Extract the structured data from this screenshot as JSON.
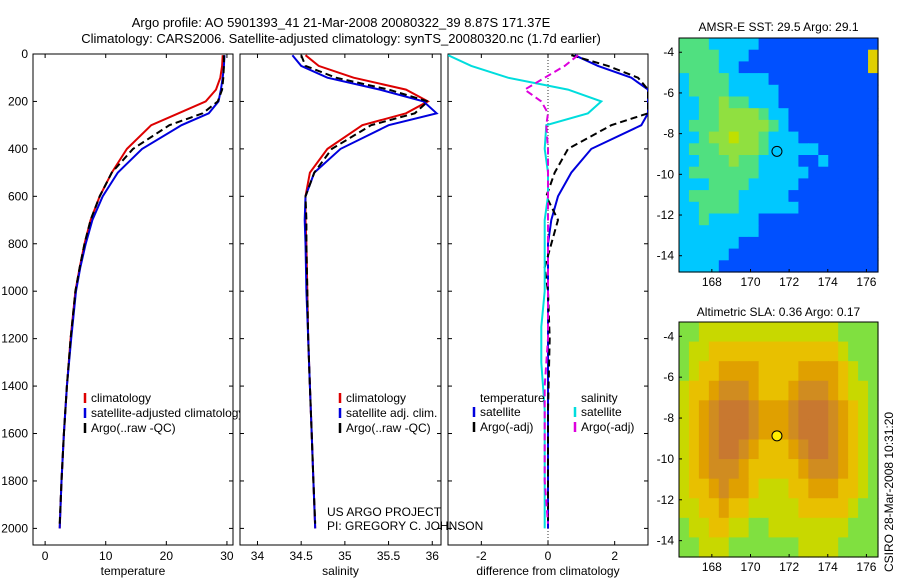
{
  "title": {
    "line1": "Argo profile: AO 5901393_41 21-Mar-2008 20080322_39 8.87S 171.37E",
    "line2": "Climatology: CARS2006. Satellite-adjusted climatology: synTS_20080320.nc (1.7d earlier)"
  },
  "side_credit": "CSIRO 28-Mar-2008 10:31:20",
  "project_note": {
    "line1": "US ARGO PROJECT",
    "line2": "PI: GREGORY C. JOHNSON"
  },
  "chart_data": [
    {
      "id": "temperature",
      "type": "line",
      "xlabel": "temperature",
      "ylabel": "",
      "xlim": [
        -2,
        31
      ],
      "ylim": [
        0,
        2070
      ],
      "y_reversed": true,
      "xticks": [
        0,
        10,
        20,
        30
      ],
      "yticks": [
        0,
        200,
        400,
        600,
        800,
        1000,
        1200,
        1400,
        1600,
        1800,
        2000
      ],
      "legend": {
        "placement": "lower-right",
        "entries": [
          "climatology",
          "satellite-adjusted climatology",
          "Argo(..raw -QC)"
        ]
      },
      "series": [
        {
          "name": "climatology",
          "color": "#dd0000",
          "dash": "solid",
          "points": [
            [
              29.3,
              5
            ],
            [
              29.2,
              50
            ],
            [
              28.9,
              100
            ],
            [
              28.2,
              150
            ],
            [
              26.5,
              200
            ],
            [
              22,
              250
            ],
            [
              17.5,
              300
            ],
            [
              13.5,
              400
            ],
            [
              11,
              500
            ],
            [
              9,
              600
            ],
            [
              7.5,
              700
            ],
            [
              6.5,
              800
            ],
            [
              5.7,
              900
            ],
            [
              5,
              1000
            ],
            [
              4.2,
              1200
            ],
            [
              3.6,
              1400
            ],
            [
              3.1,
              1600
            ],
            [
              2.7,
              1800
            ],
            [
              2.4,
              2000
            ]
          ]
        },
        {
          "name": "satellite-adjusted climatology",
          "color": "#0000dd",
          "dash": "solid",
          "points": [
            [
              29.6,
              5
            ],
            [
              29.5,
              50
            ],
            [
              29.3,
              100
            ],
            [
              29,
              150
            ],
            [
              28.6,
              200
            ],
            [
              27,
              250
            ],
            [
              22.5,
              300
            ],
            [
              16,
              400
            ],
            [
              12,
              500
            ],
            [
              9.5,
              600
            ],
            [
              7.8,
              700
            ],
            [
              6.7,
              800
            ],
            [
              5.8,
              900
            ],
            [
              5.1,
              1000
            ],
            [
              4.3,
              1200
            ],
            [
              3.6,
              1400
            ],
            [
              3.1,
              1600
            ],
            [
              2.7,
              1800
            ],
            [
              2.4,
              2000
            ]
          ]
        },
        {
          "name": "Argo(..raw -QC)",
          "color": "#000000",
          "dash": "dashed",
          "points": [
            [
              29.5,
              5
            ],
            [
              29.5,
              50
            ],
            [
              29.4,
              100
            ],
            [
              29.2,
              150
            ],
            [
              28.5,
              200
            ],
            [
              26,
              250
            ],
            [
              20.5,
              300
            ],
            [
              14.5,
              400
            ],
            [
              11,
              500
            ],
            [
              9,
              600
            ],
            [
              7.5,
              700
            ],
            [
              6.5,
              800
            ],
            [
              5.7,
              900
            ],
            [
              5,
              1000
            ],
            [
              4.2,
              1200
            ],
            [
              3.6,
              1400
            ],
            [
              3.1,
              1600
            ],
            [
              2.7,
              1800
            ],
            [
              2.4,
              1980
            ]
          ]
        }
      ]
    },
    {
      "id": "salinity",
      "type": "line",
      "xlabel": "salinity",
      "ylabel": "",
      "xlim": [
        33.8,
        36.1
      ],
      "ylim": [
        0,
        2070
      ],
      "y_reversed": true,
      "xticks": [
        34,
        34.5,
        35,
        35.5,
        36
      ],
      "legend": {
        "placement": "lower-right",
        "entries": [
          "climatology",
          "satellite adj. clim.",
          "Argo(..raw -QC)"
        ]
      },
      "series": [
        {
          "name": "climatology",
          "color": "#dd0000",
          "dash": "solid",
          "points": [
            [
              34.55,
              5
            ],
            [
              34.7,
              50
            ],
            [
              35.1,
              100
            ],
            [
              35.7,
              150
            ],
            [
              35.95,
              200
            ],
            [
              35.7,
              250
            ],
            [
              35.2,
              300
            ],
            [
              34.8,
              400
            ],
            [
              34.6,
              500
            ],
            [
              34.55,
              600
            ],
            [
              34.55,
              700
            ],
            [
              34.56,
              800
            ],
            [
              34.57,
              1000
            ],
            [
              34.58,
              1200
            ],
            [
              34.6,
              1400
            ],
            [
              34.62,
              1600
            ],
            [
              34.64,
              1800
            ],
            [
              34.66,
              2000
            ]
          ]
        },
        {
          "name": "satellite adj. clim.",
          "color": "#0000dd",
          "dash": "solid",
          "points": [
            [
              34.4,
              5
            ],
            [
              34.5,
              50
            ],
            [
              34.8,
              100
            ],
            [
              35.4,
              150
            ],
            [
              35.9,
              200
            ],
            [
              36.05,
              250
            ],
            [
              35.5,
              300
            ],
            [
              34.95,
              400
            ],
            [
              34.65,
              500
            ],
            [
              34.55,
              600
            ],
            [
              34.54,
              700
            ],
            [
              34.55,
              800
            ],
            [
              34.56,
              1000
            ],
            [
              34.58,
              1200
            ],
            [
              34.6,
              1400
            ],
            [
              34.62,
              1600
            ],
            [
              34.64,
              1800
            ],
            [
              34.66,
              2000
            ]
          ]
        },
        {
          "name": "Argo(..raw -QC)",
          "color": "#000000",
          "dash": "dashed",
          "points": [
            [
              34.5,
              5
            ],
            [
              34.55,
              50
            ],
            [
              34.9,
              100
            ],
            [
              35.5,
              150
            ],
            [
              35.95,
              200
            ],
            [
              35.8,
              250
            ],
            [
              35.3,
              300
            ],
            [
              34.85,
              400
            ],
            [
              34.65,
              500
            ],
            [
              34.55,
              600
            ],
            [
              34.56,
              700
            ],
            [
              34.56,
              800
            ],
            [
              34.57,
              1000
            ],
            [
              34.58,
              1200
            ],
            [
              34.6,
              1400
            ],
            [
              34.62,
              1600
            ],
            [
              34.64,
              1800
            ],
            [
              34.66,
              1980
            ]
          ]
        }
      ]
    },
    {
      "id": "difference",
      "type": "line",
      "xlabel": "difference from climatology",
      "ylabel": "",
      "xlim": [
        -3,
        3
      ],
      "ylim": [
        0,
        2070
      ],
      "y_reversed": true,
      "xticks": [
        -2,
        0,
        2
      ],
      "zero_line": true,
      "legend": {
        "placement": "lower-center",
        "columns": [
          {
            "header": "temperature",
            "entries": [
              "satellite",
              "Argo(-adj)"
            ]
          },
          {
            "header": "salinity",
            "entries": [
              "satellite",
              "Argo(-adj)"
            ]
          }
        ]
      },
      "series": [
        {
          "name": "temperature satellite",
          "color": "#0000dd",
          "dash": "solid",
          "points": [
            [
              0.8,
              5
            ],
            [
              1.5,
              50
            ],
            [
              2.5,
              100
            ],
            [
              3,
              150
            ],
            [
              3,
              200
            ],
            [
              3,
              250
            ],
            [
              2.8,
              300
            ],
            [
              1.3,
              400
            ],
            [
              0.7,
              500
            ],
            [
              0.3,
              600
            ],
            [
              0.1,
              700
            ],
            [
              0,
              800
            ],
            [
              0,
              1000
            ],
            [
              0,
              1200
            ],
            [
              0,
              1500
            ],
            [
              0,
              1800
            ],
            [
              0,
              2000
            ]
          ]
        },
        {
          "name": "temperature Argo(-adj)",
          "color": "#000000",
          "dash": "dashed",
          "points": [
            [
              0.7,
              5
            ],
            [
              1.8,
              50
            ],
            [
              2.7,
              100
            ],
            [
              3,
              150
            ],
            [
              3,
              200
            ],
            [
              3,
              250
            ],
            [
              1.9,
              300
            ],
            [
              0.6,
              400
            ],
            [
              0.2,
              500
            ],
            [
              -0.05,
              600
            ],
            [
              0.3,
              700
            ],
            [
              0.1,
              800
            ],
            [
              -0.1,
              900
            ],
            [
              0,
              1000
            ],
            [
              0.05,
              1200
            ],
            [
              0,
              1500
            ],
            [
              0,
              1800
            ],
            [
              0,
              1980
            ]
          ]
        },
        {
          "name": "salinity satellite",
          "color": "#00dddd",
          "dash": "solid",
          "points": [
            [
              -3,
              5
            ],
            [
              -2.3,
              50
            ],
            [
              -1.2,
              100
            ],
            [
              0.6,
              150
            ],
            [
              1.6,
              200
            ],
            [
              1.2,
              250
            ],
            [
              -0.05,
              300
            ],
            [
              -0.1,
              400
            ],
            [
              0,
              500
            ],
            [
              0,
              600
            ],
            [
              -0.1,
              700
            ],
            [
              -0.1,
              800
            ],
            [
              -0.1,
              1000
            ],
            [
              -0.2,
              1150
            ],
            [
              -0.2,
              1300
            ],
            [
              -0.1,
              1500
            ],
            [
              -0.1,
              1800
            ],
            [
              -0.1,
              2000
            ]
          ]
        },
        {
          "name": "salinity Argo(-adj)",
          "color": "#dd00dd",
          "dash": "dashed",
          "points": [
            [
              0.9,
              5
            ],
            [
              0.5,
              50
            ],
            [
              -0.1,
              100
            ],
            [
              -0.7,
              150
            ],
            [
              -0.2,
              200
            ],
            [
              0,
              250
            ],
            [
              -0.05,
              300
            ],
            [
              0,
              400
            ],
            [
              0,
              600
            ],
            [
              0,
              800
            ],
            [
              0,
              1000
            ],
            [
              0,
              1200
            ],
            [
              -0.1,
              1400
            ],
            [
              -0.1,
              1600
            ],
            [
              -0.1,
              1800
            ],
            [
              0,
              1980
            ]
          ]
        }
      ]
    },
    {
      "id": "sst-map",
      "type": "heatmap",
      "title": "AMSR-E SST: 29.5 Argo: 29.1",
      "xlim": [
        166.3,
        176.6
      ],
      "ylim": [
        -14.8,
        -3.3
      ],
      "xticks": [
        168,
        170,
        172,
        174,
        176
      ],
      "yticks": [
        -4,
        -6,
        -8,
        -10,
        -12,
        -14
      ],
      "colormap": [
        "#0050ff",
        "#00c8ff",
        "#50e080",
        "#90e040",
        "#c0e000",
        "#e0d000"
      ],
      "marker": {
        "x": 171.37,
        "y": -8.87,
        "fill": "none"
      },
      "grid_rows": [
        "22211111000000000000",
        "22221110000000000005",
        "22221100000000000005",
        "12222111100000000000",
        "12222111110000000000",
        "11223221110000000000",
        "11223333211000000000",
        "12223333321000000000",
        "11233433211100000000",
        "12223333211111000000",
        "11222322111100100000",
        "12222222111110000000",
        "11122221111100000000",
        "12222211111000000000",
        "11222211111100000000",
        "11211111000000000000",
        "11111111000000000000",
        "11111100000000000000",
        "11111000000000000000",
        "11110000000000000000"
      ]
    },
    {
      "id": "sla-map",
      "type": "heatmap",
      "title": "Altimetric SLA: 0.36 Argo: 0.17",
      "xlim": [
        166.3,
        176.6
      ],
      "ylim": [
        -14.8,
        -3.3
      ],
      "xticks": [
        168,
        170,
        172,
        174,
        176
      ],
      "yticks": [
        -4,
        -6,
        -8,
        -10,
        -12,
        -14
      ],
      "colormap": [
        "#80e040",
        "#c8d800",
        "#e8c000",
        "#e0a000",
        "#d08c20",
        "#c87830"
      ],
      "marker": {
        "x": 171.37,
        "y": -8.87,
        "fill": "#ffee00"
      },
      "grid_rows": [
        "00111111111111110000",
        "01122222222222221000",
        "01223333222233332100",
        "12234443222344432110",
        "12345554333455543210",
        "12345554333455543210",
        "12345543222345543210",
        "12344432222234443210",
        "12234332111223332210",
        "11223221111122222100",
        "01122110011111111000",
        "00111000000011110000"
      ]
    }
  ]
}
